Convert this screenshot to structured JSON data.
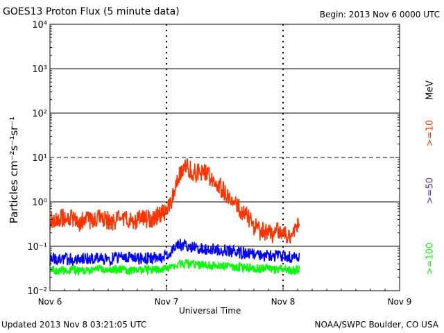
{
  "chart_data": {
    "type": "line",
    "title": "GOES13 Proton Flux (5 minute data)",
    "begin": "Begin: 2013 Nov 6 0000 UTC",
    "xlabel": "Universal Time",
    "ylabel": "Particles cm⁻²s⁻¹sr⁻¹",
    "yscale": "log",
    "ylim_exponent": [
      -2,
      4
    ],
    "y_ticks": [
      {
        "exp": -2,
        "label": "10⁻²"
      },
      {
        "exp": -1,
        "label": "10⁻¹"
      },
      {
        "exp": 0,
        "label": "10⁰"
      },
      {
        "exp": 1,
        "label": "10¹"
      },
      {
        "exp": 2,
        "label": "10²"
      },
      {
        "exp": 3,
        "label": "10³"
      },
      {
        "exp": 4,
        "label": "10⁴"
      }
    ],
    "x_ticks": [
      {
        "day": 0,
        "label": "Nov 6"
      },
      {
        "day": 1,
        "label": "Nov 7"
      },
      {
        "day": 2,
        "label": "Nov 8"
      },
      {
        "day": 3,
        "label": "Nov 9"
      }
    ],
    "xlim_days": [
      0,
      3
    ],
    "data_end_day": 2.14,
    "dashed_threshold_exp": 1,
    "series": [
      {
        "name": ">=10",
        "label": ">=10",
        "color": "#ff3300",
        "points": [
          [
            0.0,
            0.4
          ],
          [
            0.05,
            0.35
          ],
          [
            0.1,
            0.45
          ],
          [
            0.15,
            0.38
          ],
          [
            0.2,
            0.42
          ],
          [
            0.25,
            0.33
          ],
          [
            0.3,
            0.4
          ],
          [
            0.35,
            0.36
          ],
          [
            0.4,
            0.44
          ],
          [
            0.45,
            0.38
          ],
          [
            0.5,
            0.4
          ],
          [
            0.55,
            0.34
          ],
          [
            0.6,
            0.42
          ],
          [
            0.65,
            0.4
          ],
          [
            0.7,
            0.36
          ],
          [
            0.75,
            0.42
          ],
          [
            0.8,
            0.44
          ],
          [
            0.85,
            0.4
          ],
          [
            0.9,
            0.46
          ],
          [
            0.95,
            0.52
          ],
          [
            1.0,
            0.6
          ],
          [
            1.03,
            0.85
          ],
          [
            1.06,
            1.6
          ],
          [
            1.09,
            3.0
          ],
          [
            1.12,
            4.5
          ],
          [
            1.15,
            5.5
          ],
          [
            1.18,
            5.8
          ],
          [
            1.22,
            5.0
          ],
          [
            1.26,
            4.5
          ],
          [
            1.3,
            4.8
          ],
          [
            1.34,
            4.2
          ],
          [
            1.38,
            3.6
          ],
          [
            1.42,
            3.0
          ],
          [
            1.46,
            2.2
          ],
          [
            1.5,
            1.7
          ],
          [
            1.55,
            1.2
          ],
          [
            1.6,
            0.8
          ],
          [
            1.65,
            0.55
          ],
          [
            1.7,
            0.45
          ],
          [
            1.75,
            0.3
          ],
          [
            1.8,
            0.22
          ],
          [
            1.85,
            0.2
          ],
          [
            1.9,
            0.18
          ],
          [
            1.95,
            0.22
          ],
          [
            2.0,
            0.2
          ],
          [
            2.05,
            0.18
          ],
          [
            2.1,
            0.22
          ],
          [
            2.14,
            0.3
          ]
        ]
      },
      {
        "name": ">=50",
        "label": ">=50",
        "color": "#0000ff",
        "points": [
          [
            0.0,
            0.05
          ],
          [
            0.1,
            0.055
          ],
          [
            0.2,
            0.05
          ],
          [
            0.3,
            0.055
          ],
          [
            0.4,
            0.052
          ],
          [
            0.5,
            0.05
          ],
          [
            0.6,
            0.058
          ],
          [
            0.7,
            0.055
          ],
          [
            0.8,
            0.052
          ],
          [
            0.9,
            0.055
          ],
          [
            1.0,
            0.06
          ],
          [
            1.05,
            0.09
          ],
          [
            1.1,
            0.11
          ],
          [
            1.2,
            0.1
          ],
          [
            1.3,
            0.09
          ],
          [
            1.4,
            0.085
          ],
          [
            1.5,
            0.08
          ],
          [
            1.6,
            0.075
          ],
          [
            1.7,
            0.068
          ],
          [
            1.8,
            0.065
          ],
          [
            1.9,
            0.06
          ],
          [
            2.0,
            0.06
          ],
          [
            2.1,
            0.055
          ],
          [
            2.14,
            0.058
          ]
        ]
      },
      {
        "name": ">=100",
        "label": ">=100",
        "color": "#00ff00",
        "points": [
          [
            0.0,
            0.03
          ],
          [
            0.1,
            0.028
          ],
          [
            0.2,
            0.03
          ],
          [
            0.3,
            0.027
          ],
          [
            0.4,
            0.03
          ],
          [
            0.5,
            0.029
          ],
          [
            0.6,
            0.03
          ],
          [
            0.7,
            0.028
          ],
          [
            0.8,
            0.03
          ],
          [
            0.9,
            0.029
          ],
          [
            1.0,
            0.032
          ],
          [
            1.1,
            0.04
          ],
          [
            1.2,
            0.04
          ],
          [
            1.3,
            0.038
          ],
          [
            1.4,
            0.036
          ],
          [
            1.5,
            0.035
          ],
          [
            1.6,
            0.034
          ],
          [
            1.7,
            0.033
          ],
          [
            1.8,
            0.032
          ],
          [
            1.9,
            0.03
          ],
          [
            2.0,
            0.03
          ],
          [
            2.1,
            0.029
          ],
          [
            2.14,
            0.03
          ]
        ]
      }
    ],
    "energy_unit": "MeV"
  },
  "footer": {
    "updated": "Updated 2013 Nov  8 03:21:05 UTC",
    "credit": "NOAA/SWPC Boulder, CO USA"
  }
}
